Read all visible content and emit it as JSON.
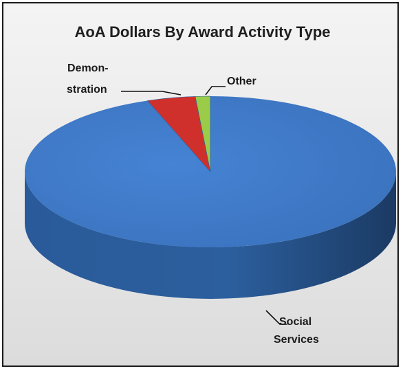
{
  "chart_data": {
    "type": "pie",
    "title": "AoA Dollars By Award Activity Type",
    "slices": [
      {
        "label_lines": [
          "Social",
          "Services"
        ],
        "value": 94.5,
        "color": "#3c78c8"
      },
      {
        "label_lines": [
          "Demon-",
          "stration"
        ],
        "value": 4.2,
        "color": "#d0302c"
      },
      {
        "label_lines": [
          "Other"
        ],
        "value": 1.3,
        "color": "#9acc4a"
      }
    ],
    "legend": "none"
  }
}
